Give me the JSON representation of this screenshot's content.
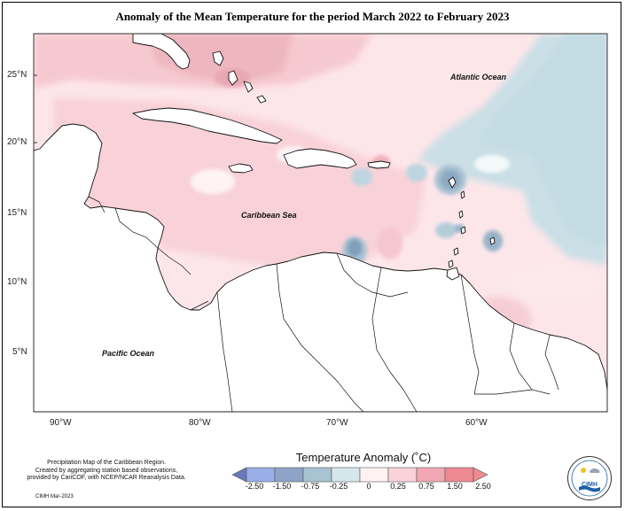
{
  "title": "Anomaly of the Mean Temperature for the period March 2022 to February 2023",
  "map": {
    "lat_labels": [
      "25°N",
      "20°N",
      "15°N",
      "10°N",
      "5°N"
    ],
    "lon_labels": [
      "90°W",
      "80°W",
      "70°W",
      "60°W"
    ],
    "ocean_labels": {
      "atlantic": "Atlantic Ocean",
      "caribbean": "Caribbean Sea",
      "pacific": "Pacific Ocean"
    }
  },
  "legend": {
    "title": "Temperature Anomaly (˚C)",
    "labels": [
      "-2.50",
      "-1.50",
      "-0.75",
      "-0.25",
      "0",
      "0.25",
      "0.75",
      "1.50",
      "2.50"
    ],
    "colors": [
      "#6a79b8",
      "#9aaee8",
      "#8ea3c8",
      "#a8c3d2",
      "#d6e7ec",
      "#fff2f2",
      "#f9d3d9",
      "#f2a8b4",
      "#ee8a92"
    ]
  },
  "footnote": {
    "lines": [
      "Precipitation Map of the Caribbean Region.",
      "Created by aggregating station based observations,",
      "provided by CariCOF, with NCEP/NCAR Reanalysis Data."
    ],
    "date": "CIMH Mar-2023"
  },
  "logo": {
    "text": "CIMH"
  }
}
